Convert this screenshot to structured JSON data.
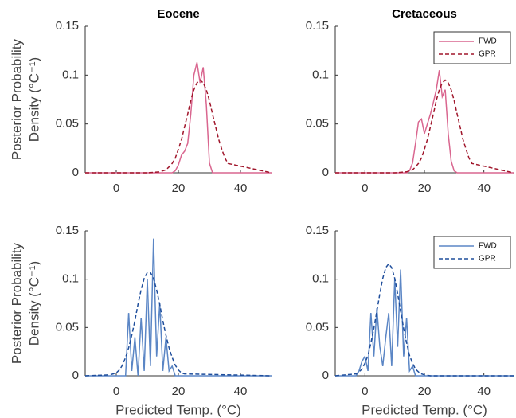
{
  "chart_data": [
    {
      "type": "line",
      "title": "Eocene",
      "ylabel": [
        "Posterior Probability",
        "Density (°C⁻¹)"
      ],
      "x": [
        -10,
        10,
        14,
        15,
        16,
        17,
        18,
        19,
        20,
        21,
        22,
        23,
        24,
        25,
        26,
        27,
        28,
        29,
        30,
        31,
        32,
        33,
        34,
        35,
        36,
        50
      ],
      "series": [
        {
          "color": "#d9668f",
          "style": "solid",
          "values": [
            0,
            0,
            0,
            0,
            0,
            0,
            0,
            0.002,
            0.008,
            0.018,
            0.022,
            0.03,
            0.06,
            0.1,
            0.113,
            0.092,
            0.108,
            0.07,
            0.01,
            0,
            0,
            0,
            0,
            0,
            0,
            0
          ]
        },
        {
          "color": "#a0162b",
          "style": "dashed",
          "values": [
            0,
            0,
            0.001,
            0.002,
            0.003,
            0.006,
            0.0095,
            0.015,
            0.024,
            0.034,
            0.047,
            0.06,
            0.074,
            0.085,
            0.092,
            0.095,
            0.092,
            0.085,
            0.074,
            0.06,
            0.047,
            0.034,
            0.024,
            0.015,
            0.0095,
            0
          ]
        }
      ],
      "xlim": [
        -10,
        50
      ],
      "ylim": [
        0,
        0.15
      ],
      "xticks": [
        0,
        20,
        40
      ],
      "yticks": [
        0,
        0.05,
        0.1,
        0.15
      ]
    },
    {
      "type": "line",
      "title": "Cretaceous",
      "x": [
        -10,
        10,
        14,
        15,
        16,
        17,
        18,
        19,
        20,
        21,
        22,
        23,
        24,
        25,
        26,
        27,
        28,
        29,
        30,
        31,
        32,
        33,
        34,
        35,
        36,
        50
      ],
      "series": [
        {
          "name": "FWD",
          "color": "#d9668f",
          "style": "solid",
          "values": [
            0,
            0,
            0,
            0.002,
            0.01,
            0.03,
            0.052,
            0.055,
            0.04,
            0.05,
            0.06,
            0.072,
            0.085,
            0.105,
            0.078,
            0.085,
            0.04,
            0.012,
            0.002,
            0,
            0,
            0,
            0,
            0,
            0,
            0
          ]
        },
        {
          "name": "GPR",
          "color": "#a0162b",
          "style": "dashed",
          "values": [
            0,
            0,
            0.001,
            0.002,
            0.003,
            0.006,
            0.0095,
            0.015,
            0.024,
            0.034,
            0.047,
            0.06,
            0.074,
            0.085,
            0.092,
            0.095,
            0.092,
            0.085,
            0.074,
            0.06,
            0.047,
            0.034,
            0.024,
            0.015,
            0.0095,
            0
          ]
        }
      ],
      "legend": "northeast",
      "xlim": [
        -10,
        50
      ],
      "ylim": [
        0,
        0.15
      ],
      "xticks": [
        0,
        20,
        40
      ],
      "yticks": [
        0,
        0.05,
        0.1,
        0.15
      ]
    },
    {
      "type": "line",
      "ylabel": [
        "Posterior Probability",
        "Density (°C⁻¹)"
      ],
      "xlabel": "Predicted Temp. (°C)",
      "x": [
        -10,
        -2,
        -1,
        0,
        1,
        2,
        3,
        4,
        5,
        6,
        7,
        8,
        9,
        10,
        11,
        12,
        13,
        14,
        15,
        16,
        17,
        18,
        19,
        20,
        21,
        22,
        50
      ],
      "series": [
        {
          "color": "#5b86c5",
          "style": "solid",
          "values": [
            0,
            0,
            0,
            0,
            0,
            0,
            0,
            0.065,
            0.005,
            0.04,
            0,
            0.06,
            0.005,
            0.1,
            0.01,
            0.142,
            0.02,
            0.075,
            0.005,
            0.04,
            0.005,
            0.01,
            0,
            0,
            0,
            0,
            0
          ]
        },
        {
          "color": "#1f4e9c",
          "style": "dashed",
          "values": [
            0,
            0.001,
            0.002,
            0.003,
            0.006,
            0.011,
            0.019,
            0.029,
            0.042,
            0.057,
            0.074,
            0.089,
            0.101,
            0.107,
            0.107,
            0.101,
            0.089,
            0.074,
            0.057,
            0.042,
            0.029,
            0.019,
            0.011,
            0.006,
            0.003,
            0.002,
            0
          ]
        }
      ],
      "xlim": [
        -10,
        50
      ],
      "ylim": [
        0,
        0.15
      ],
      "xticks": [
        0,
        20,
        40
      ],
      "yticks": [
        0,
        0.05,
        0.1,
        0.15
      ]
    },
    {
      "type": "line",
      "xlabel": "Predicted Temp. (°C)",
      "x": [
        -10,
        -3,
        -2,
        -1,
        0,
        1,
        2,
        3,
        4,
        5,
        6,
        7,
        8,
        9,
        10,
        11,
        12,
        13,
        14,
        15,
        16,
        17,
        18,
        19,
        20,
        22,
        50
      ],
      "series": [
        {
          "name": "FWD",
          "color": "#5b86c5",
          "style": "solid",
          "values": [
            0,
            0,
            0.005,
            0.015,
            0.02,
            0.005,
            0.065,
            0.02,
            0.07,
            0.03,
            0.01,
            0.04,
            0.065,
            0.01,
            0.1,
            0.03,
            0.11,
            0.02,
            0.06,
            0.005,
            0.01,
            0,
            0,
            0,
            0,
            0,
            0
          ]
        },
        {
          "name": "GPR",
          "color": "#1f4e9c",
          "style": "dashed",
          "values": [
            0,
            0.002,
            0.004,
            0.007,
            0.013,
            0.021,
            0.034,
            0.049,
            0.067,
            0.085,
            0.101,
            0.112,
            0.116,
            0.112,
            0.101,
            0.085,
            0.067,
            0.049,
            0.034,
            0.021,
            0.013,
            0.007,
            0.004,
            0.002,
            0.001,
            0,
            0
          ]
        }
      ],
      "legend": "northeast",
      "xlim": [
        -10,
        50
      ],
      "ylim": [
        0,
        0.15
      ],
      "xticks": [
        0,
        20,
        40
      ],
      "yticks": [
        0,
        0.05,
        0.1,
        0.15
      ]
    }
  ]
}
